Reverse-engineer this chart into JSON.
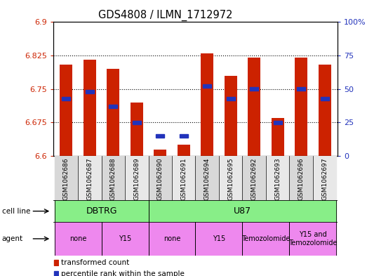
{
  "title": "GDS4808 / ILMN_1712972",
  "samples": [
    "GSM1062686",
    "GSM1062687",
    "GSM1062688",
    "GSM1062689",
    "GSM1062690",
    "GSM1062691",
    "GSM1062694",
    "GSM1062695",
    "GSM1062692",
    "GSM1062693",
    "GSM1062696",
    "GSM1062697"
  ],
  "bar_values": [
    6.805,
    6.815,
    6.795,
    6.72,
    6.615,
    6.625,
    6.83,
    6.78,
    6.82,
    6.685,
    6.82,
    6.805
  ],
  "bar_base": 6.6,
  "percentile_pcts": [
    43,
    48,
    37,
    25,
    15,
    15,
    52,
    43,
    50,
    25,
    50,
    43
  ],
  "ylim_left": [
    6.6,
    6.9
  ],
  "ylim_right": [
    0,
    100
  ],
  "yticks_left": [
    6.6,
    6.675,
    6.75,
    6.825,
    6.9
  ],
  "yticks_right": [
    0,
    25,
    50,
    75,
    100
  ],
  "ytick_labels_left": [
    "6.6",
    "6.675",
    "6.75",
    "6.825",
    "6.9"
  ],
  "ytick_labels_right": [
    "0",
    "25",
    "50",
    "75",
    "100%"
  ],
  "bar_color": "#CC2200",
  "percentile_color": "#2233BB",
  "bg_color": "#ffffff",
  "cell_line_color": "#88EE88",
  "agent_color": "#EE88EE",
  "col_bg_odd": "#d8d8d8",
  "col_bg_even": "#e8e8e8",
  "cell_line_row": [
    {
      "label": "DBTRG",
      "start": 0,
      "end": 4
    },
    {
      "label": "U87",
      "start": 4,
      "end": 12
    }
  ],
  "agent_row": [
    {
      "label": "none",
      "start": 0,
      "end": 2
    },
    {
      "label": "Y15",
      "start": 2,
      "end": 4
    },
    {
      "label": "none",
      "start": 4,
      "end": 6
    },
    {
      "label": "Y15",
      "start": 6,
      "end": 8
    },
    {
      "label": "Temozolomide",
      "start": 8,
      "end": 10
    },
    {
      "label": "Y15 and\nTemozolomide",
      "start": 10,
      "end": 12
    }
  ],
  "tick_label_color_left": "#CC2200",
  "tick_label_color_right": "#2233BB",
  "bar_width": 0.55,
  "grid_yticks": [
    6.675,
    6.75,
    6.825
  ]
}
